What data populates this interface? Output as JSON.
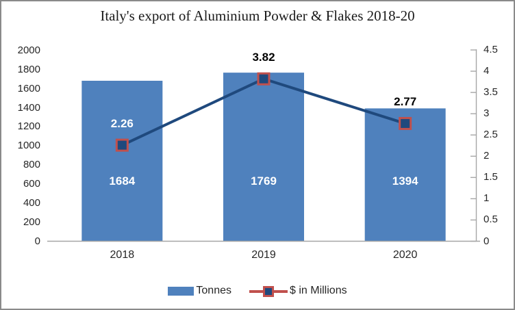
{
  "title": "Italy's export of Aluminium Powder & Flakes 2018-20",
  "colors": {
    "bar": "#4F81BD",
    "line": "#1F497D",
    "marker_fill": "#1F497D",
    "marker_border": "#C0504D",
    "legend_line": "#C0504D",
    "axis_line": "#A6A6A6",
    "text": "#262626",
    "bar_label": "#FFFFFF",
    "frame_border": "#8A8A8A"
  },
  "chart_data": {
    "type": "combo-bar-line",
    "categories": [
      "2018",
      "2019",
      "2020"
    ],
    "series": [
      {
        "name": "Tonnes",
        "type": "bar",
        "axis": "left",
        "values": [
          1684,
          1769,
          1394
        ],
        "data_labels": [
          "1684",
          "1769",
          "1394"
        ],
        "color": "#4F81BD",
        "label_color": "#FFFFFF"
      },
      {
        "name": "$ in Millions",
        "type": "line",
        "axis": "right",
        "values": [
          2.26,
          3.82,
          2.77
        ],
        "data_labels": [
          "2.26",
          "3.82",
          "2.77"
        ],
        "line_color": "#1F497D",
        "marker_fill": "#1F497D",
        "marker_border": "#C0504D",
        "label_colors": [
          "#FFFFFF",
          "#000000",
          "#000000"
        ]
      }
    ],
    "left_axis": {
      "min": 0,
      "max": 2000,
      "step": 200,
      "ticks": [
        "2000",
        "1800",
        "1600",
        "1400",
        "1200",
        "1000",
        "800",
        "600",
        "400",
        "200",
        "0"
      ]
    },
    "right_axis": {
      "min": 0,
      "max": 4.5,
      "step": 0.5,
      "ticks": [
        "4.5",
        "4",
        "3.5",
        "3",
        "2.5",
        "2",
        "1.5",
        "1",
        "0.5",
        "0"
      ]
    },
    "grid": false,
    "legend_position": "bottom"
  },
  "legend": {
    "items": [
      {
        "label": "Tonnes"
      },
      {
        "label": "$ in Millions"
      }
    ]
  }
}
